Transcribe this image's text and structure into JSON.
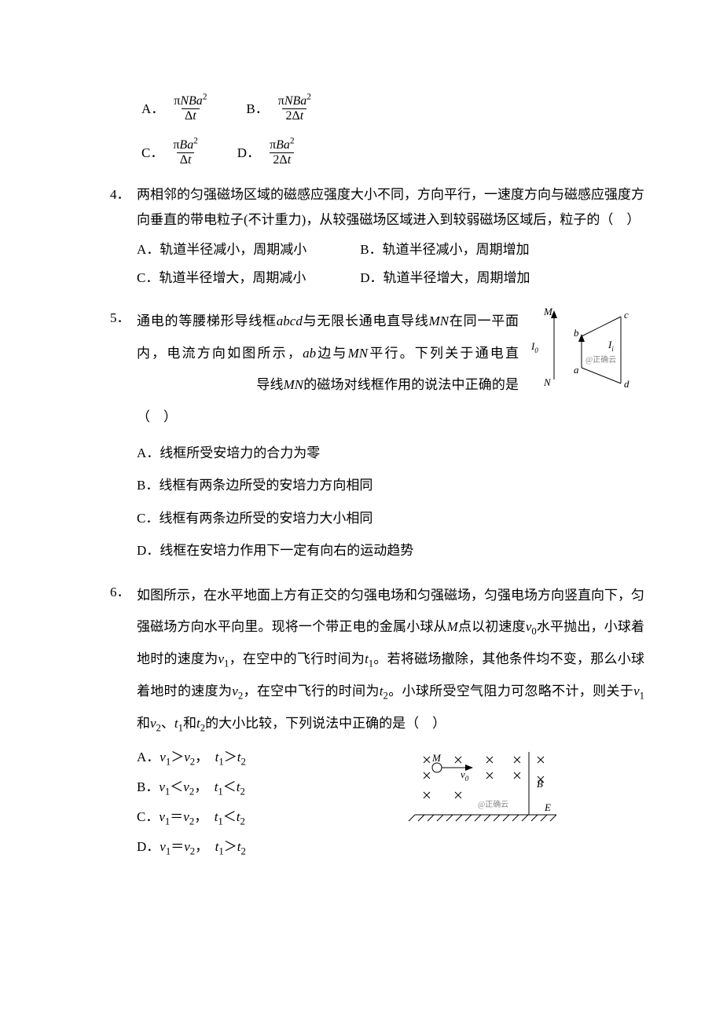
{
  "q3_options": {
    "A": {
      "label": "A．",
      "num_html": "π<span class='italic-var'>NBa</span><sup>2</sup>",
      "den_html": "Δ<span class='italic-var'>t</span>"
    },
    "B": {
      "label": "B．",
      "num_html": "π<span class='italic-var'>NBa</span><sup>2</sup>",
      "den_html": "2Δ<span class='italic-var'>t</span>"
    },
    "C": {
      "label": "C．",
      "num_html": "π<span class='italic-var'>Ba</span><sup>2</sup>",
      "den_html": "Δ<span class='italic-var'>t</span>"
    },
    "D": {
      "label": "D．",
      "num_html": "π<span class='italic-var'>Ba</span><sup>2</sup>",
      "den_html": "2Δ<span class='italic-var'>t</span>"
    }
  },
  "q4": {
    "num": "4．",
    "stem": "两相邻的匀强磁场区域的磁感应强度大小不同，方向平行，一速度方向与磁感应强度方向垂直的带电粒子(不计重力)，从较强磁场区域进入到较弱磁场区域后，粒子的（　）",
    "opts": {
      "A": "A．轨道半径减小，周期减小",
      "B": "B．轨道半径减小，周期增加",
      "C": "C．轨道半径增大，周期减小",
      "D": "D．轨道半径增大，周期增加"
    }
  },
  "q5": {
    "num": "5．",
    "stem_1": "通电的等腰梯形导线框",
    "stem_abcd": "abcd",
    "stem_2": "与无限长通电直导线",
    "stem_mn": "MN",
    "stem_3": "在同一平面内，电流方向如图所示，",
    "stem_ab": "ab",
    "stem_4": "边与",
    "stem_5": "平行。下列关于通电直",
    "stem_gap": "导线",
    "stem_6": "的磁场对线框作用的说法中正确的是（　）",
    "opts": {
      "A": "A．线框所受安培力的合力为零",
      "B": "B．线框有两条边所受的安培力方向相同",
      "C": "C．线框有两条边所受的安培力大小相同",
      "D": "D．线框在安培力作用下一定有向右的运动趋势"
    },
    "fig": {
      "M": "M",
      "N": "N",
      "a": "a",
      "b": "b",
      "c": "c",
      "d": "d",
      "I0": "I",
      "Ii": "I",
      "sub0": "0",
      "subi": "i",
      "watermark": "@正确云"
    }
  },
  "q6": {
    "num": "6．",
    "stem": "如图所示，在水平地面上方有正交的匀强电场和匀强磁场，匀强电场方向竖直向下，匀强磁场方向水平向里。现将一个带正电的金属小球从<span class='italic-var'>M</span>点以初速度<span class='italic-var'>v</span><sub>0</sub>水平抛出，小球着地时的速度为<span class='italic-var'>v</span><sub>1</sub>，在空中的飞行时间为<span class='italic-var'>t</span><sub>1</sub>。若将磁场撤除，其他条件均不变，那么小球着地时的速度为<span class='italic-var'>v</span><sub>2</sub>，在空中飞行的时间为<span class='italic-var'>t</span><sub>2</sub>。小球所受空气阻力可忽略不计，则关于<span class='italic-var'>v</span><sub>1</sub>和<span class='italic-var'>v</span><sub>2</sub>、<span class='italic-var'>t</span><sub>1</sub>和<span class='italic-var'>t</span><sub>2</sub>的大小比较，下列说法中正确的是（　）",
    "opts": {
      "A": "A．<span class='italic-var'>v</span><sub>1</sub>＞<span class='italic-var'>v</span><sub>2</sub>，　<span class='italic-var'>t</span><sub>1</sub>＞<span class='italic-var'>t</span><sub>2</sub>",
      "B": "B．<span class='italic-var'>v</span><sub>1</sub>＜<span class='italic-var'>v</span><sub>2</sub>，　<span class='italic-var'>t</span><sub>1</sub>＜<span class='italic-var'>t</span><sub>2</sub>",
      "C": "C．<span class='italic-var'>v</span><sub>1</sub>＝<span class='italic-var'>v</span><sub>2</sub>，　<span class='italic-var'>t</span><sub>1</sub>＜<span class='italic-var'>t</span><sub>2</sub>",
      "D": "D．<span class='italic-var'>v</span><sub>1</sub>＝<span class='italic-var'>v</span><sub>2</sub>，　<span class='italic-var'>t</span><sub>1</sub>＞<span class='italic-var'>t</span><sub>2</sub>"
    },
    "fig": {
      "M": "M",
      "v0": "v",
      "sub0": "0",
      "B": "B",
      "E": "E",
      "watermark": "@正确云"
    }
  }
}
